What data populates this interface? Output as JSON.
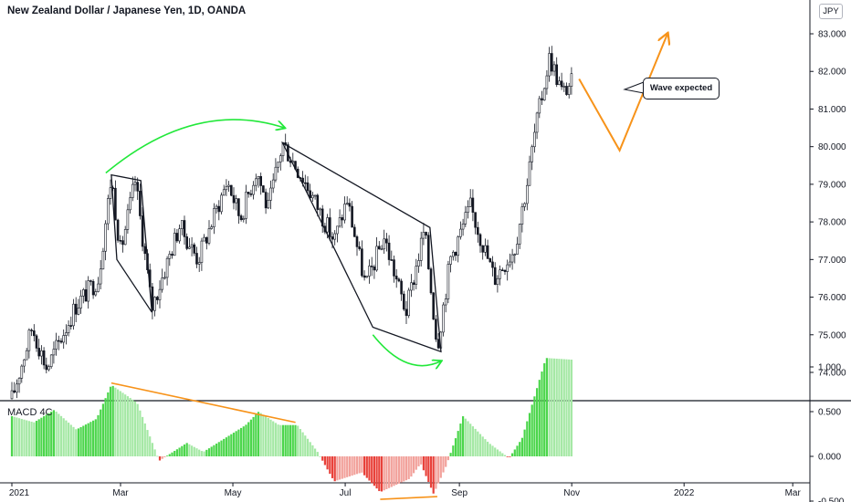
{
  "header": {
    "symbol_title": "New Zealand Dollar / Japanese Yen, 1D, OANDA",
    "currency_button": "JPY"
  },
  "annotation": {
    "callout_text": "Wave expected"
  },
  "colors": {
    "candle": "#131722",
    "arrow_green": "#22e83a",
    "arrow_orange": "#f7931a",
    "macd_pos_strong": "#4cd64c",
    "macd_pos_weak": "#a5e8a5",
    "macd_neg_strong": "#e8413a",
    "macd_neg_weak": "#f2a19b"
  },
  "chart_data": [
    {
      "type": "candlestick",
      "title": "New Zealand Dollar / Japanese Yen, 1D, OANDA",
      "x_tick_labels": [
        "2021",
        "Mar",
        "May",
        "Jul",
        "Sep",
        "Nov",
        "2022",
        "Mar"
      ],
      "y_tick_labels": [
        "74.000",
        "75.000",
        "76.000",
        "77.000",
        "78.000",
        "79.000",
        "80.000",
        "81.000",
        "82.000",
        "83.000"
      ],
      "ylim": [
        73.2,
        83.9
      ],
      "grid": false,
      "price_path_points": [
        {
          "date": "2021-01-01",
          "close": 73.3
        },
        {
          "date": "2021-01-12",
          "close": 75.2
        },
        {
          "date": "2021-01-20",
          "close": 74.1
        },
        {
          "date": "2021-02-05",
          "close": 75.8
        },
        {
          "date": "2021-02-17",
          "close": 76.5
        },
        {
          "date": "2021-02-24",
          "close": 79.2
        },
        {
          "date": "2021-03-01",
          "close": 77.2
        },
        {
          "date": "2021-03-09",
          "close": 79.1
        },
        {
          "date": "2021-03-18",
          "close": 75.7
        },
        {
          "date": "2021-04-02",
          "close": 77.9
        },
        {
          "date": "2021-04-12",
          "close": 77.0
        },
        {
          "date": "2021-04-28",
          "close": 79.1
        },
        {
          "date": "2021-05-05",
          "close": 78.1
        },
        {
          "date": "2021-05-14",
          "close": 79.4
        },
        {
          "date": "2021-05-20",
          "close": 78.3
        },
        {
          "date": "2021-05-28",
          "close": 80.1
        },
        {
          "date": "2021-06-10",
          "close": 79.0
        },
        {
          "date": "2021-06-25",
          "close": 77.5
        },
        {
          "date": "2021-07-02",
          "close": 78.6
        },
        {
          "date": "2021-07-12",
          "close": 76.3
        },
        {
          "date": "2021-07-22",
          "close": 77.6
        },
        {
          "date": "2021-08-03",
          "close": 75.6
        },
        {
          "date": "2021-08-13",
          "close": 77.8
        },
        {
          "date": "2021-08-20",
          "close": 74.7
        },
        {
          "date": "2021-08-27",
          "close": 77.0
        },
        {
          "date": "2021-09-07",
          "close": 78.4
        },
        {
          "date": "2021-09-20",
          "close": 76.5
        },
        {
          "date": "2021-10-01",
          "close": 77.3
        },
        {
          "date": "2021-10-08",
          "close": 79.1
        },
        {
          "date": "2021-10-12",
          "close": 80.4
        },
        {
          "date": "2021-10-20",
          "close": 82.4
        },
        {
          "date": "2021-10-27",
          "close": 81.4
        },
        {
          "date": "2021-11-02",
          "close": 81.8
        }
      ],
      "drawings": [
        {
          "kind": "polygon",
          "points": [
            {
              "date": "2021-02-24",
              "price": 79.25
            },
            {
              "date": "2021-03-12",
              "price": 79.1
            },
            {
              "date": "2021-03-18",
              "price": 75.6
            },
            {
              "date": "2021-02-27",
              "price": 77.0
            }
          ]
        },
        {
          "kind": "polygon",
          "points": [
            {
              "date": "2021-05-28",
              "price": 80.1
            },
            {
              "date": "2021-08-16",
              "price": 77.85
            },
            {
              "date": "2021-08-22",
              "price": 74.55
            },
            {
              "date": "2021-07-16",
              "price": 75.2
            }
          ]
        },
        {
          "kind": "curved-arrow",
          "color": "green",
          "from": {
            "date": "2021-02-21",
            "price": 79.3
          },
          "to": {
            "date": "2021-05-29",
            "price": 80.5
          }
        },
        {
          "kind": "curved-arrow",
          "color": "green",
          "from": {
            "date": "2021-07-16",
            "price": 75.0
          },
          "to": {
            "date": "2021-08-22",
            "price": 74.3
          }
        },
        {
          "kind": "polyline-arrow",
          "color": "orange",
          "points": [
            {
              "date": "2021-11-05",
              "price": 81.8
            },
            {
              "date": "2021-11-27",
              "price": 79.9
            },
            {
              "date": "2021-12-23",
              "price": 83.0
            }
          ]
        }
      ]
    },
    {
      "type": "bar",
      "title": "MACD 4C",
      "x_tick_labels": [
        "2021",
        "Mar",
        "May",
        "Jul",
        "Sep",
        "Nov",
        "2022",
        "Mar"
      ],
      "y_tick_labels": [
        "1.000",
        "0.500",
        "0.000",
        "-0.500"
      ],
      "ylim": [
        -0.55,
        1.1
      ],
      "histogram_points": [
        {
          "date": "2021-01-01",
          "value": 0.45
        },
        {
          "date": "2021-01-13",
          "value": 0.38
        },
        {
          "date": "2021-01-24",
          "value": 0.52
        },
        {
          "date": "2021-02-05",
          "value": 0.3
        },
        {
          "date": "2021-02-16",
          "value": 0.42
        },
        {
          "date": "2021-02-24",
          "value": 0.8
        },
        {
          "date": "2021-03-10",
          "value": 0.6
        },
        {
          "date": "2021-03-22",
          "value": -0.05
        },
        {
          "date": "2021-04-06",
          "value": 0.15
        },
        {
          "date": "2021-04-15",
          "value": 0.05
        },
        {
          "date": "2021-05-08",
          "value": 0.35
        },
        {
          "date": "2021-05-15",
          "value": 0.5
        },
        {
          "date": "2021-05-26",
          "value": 0.35
        },
        {
          "date": "2021-06-05",
          "value": 0.35
        },
        {
          "date": "2021-06-16",
          "value": 0.05
        },
        {
          "date": "2021-06-25",
          "value": -0.28
        },
        {
          "date": "2021-07-10",
          "value": -0.18
        },
        {
          "date": "2021-07-20",
          "value": -0.4
        },
        {
          "date": "2021-08-05",
          "value": -0.25
        },
        {
          "date": "2021-08-11",
          "value": -0.08
        },
        {
          "date": "2021-08-18",
          "value": -0.42
        },
        {
          "date": "2021-08-25",
          "value": -0.1
        },
        {
          "date": "2021-09-03",
          "value": 0.45
        },
        {
          "date": "2021-09-17",
          "value": 0.15
        },
        {
          "date": "2021-09-28",
          "value": -0.02
        },
        {
          "date": "2021-10-05",
          "value": 0.2
        },
        {
          "date": "2021-10-18",
          "value": 1.1
        },
        {
          "date": "2021-11-02",
          "value": 1.08
        }
      ],
      "drawings": [
        {
          "kind": "line",
          "color": "orange",
          "from": {
            "date": "2021-02-24",
            "value": 0.82
          },
          "to": {
            "date": "2021-06-04",
            "value": 0.38
          }
        },
        {
          "kind": "line",
          "color": "orange",
          "from": {
            "date": "2021-07-20",
            "value": -0.48
          },
          "to": {
            "date": "2021-08-20",
            "value": -0.45
          }
        }
      ]
    }
  ]
}
